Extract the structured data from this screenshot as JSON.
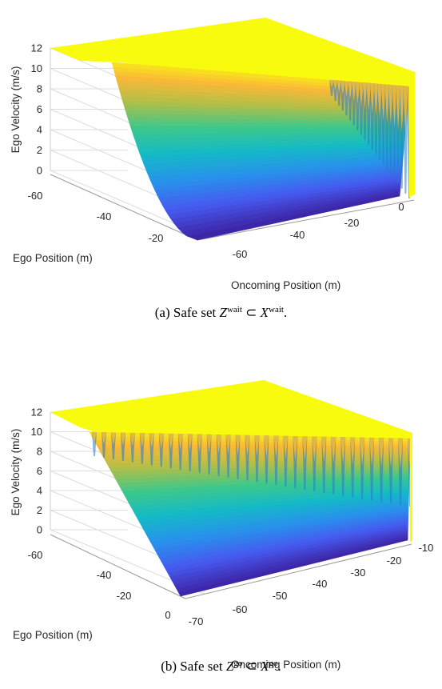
{
  "chart_data": [
    {
      "id": "wait",
      "type": "surface",
      "caption": {
        "prefix": "(a) Safe set ",
        "set": "Z",
        "set_sup": "wait",
        "subset": "⊂",
        "superset": "X",
        "superset_sup": "wait",
        "suffix": "."
      },
      "zlabel": "Ego Velocity (m/s)",
      "ylabel": "Ego Position (m)",
      "xlabel": "Oncoming Position (m)",
      "z_ticks": [
        "12",
        "10",
        "8",
        "6",
        "4",
        "2",
        "0"
      ],
      "z_tick_values": [
        12,
        10,
        8,
        6,
        4,
        2,
        0
      ],
      "y_ticks": [
        "-60",
        "-40",
        "-20"
      ],
      "x_ticks": [
        "-60",
        "-40",
        "-20",
        "0"
      ],
      "zlim": [
        0,
        12
      ],
      "colormap": "parula",
      "grid": true
    },
    {
      "id": "go",
      "type": "surface",
      "caption": {
        "prefix": "(b) Safe set ",
        "set": "Z",
        "set_sup": "go",
        "subset": "⊂",
        "superset": "X",
        "superset_sup": "go",
        "suffix": "."
      },
      "zlabel": "Ego Velocity (m/s)",
      "ylabel": "Ego Position (m)",
      "xlabel": "Oncoming Position (m)",
      "z_ticks": [
        "12",
        "10",
        "8",
        "6",
        "4",
        "2",
        "0"
      ],
      "z_tick_values": [
        12,
        10,
        8,
        6,
        4,
        2,
        0
      ],
      "y_ticks": [
        "-60",
        "-40",
        "-20",
        "0"
      ],
      "x_ticks": [
        "-70",
        "-60",
        "-50",
        "-40",
        "-30",
        "-20",
        "-10"
      ],
      "zlim": [
        0,
        12
      ],
      "colormap": "parula",
      "grid": true
    }
  ]
}
